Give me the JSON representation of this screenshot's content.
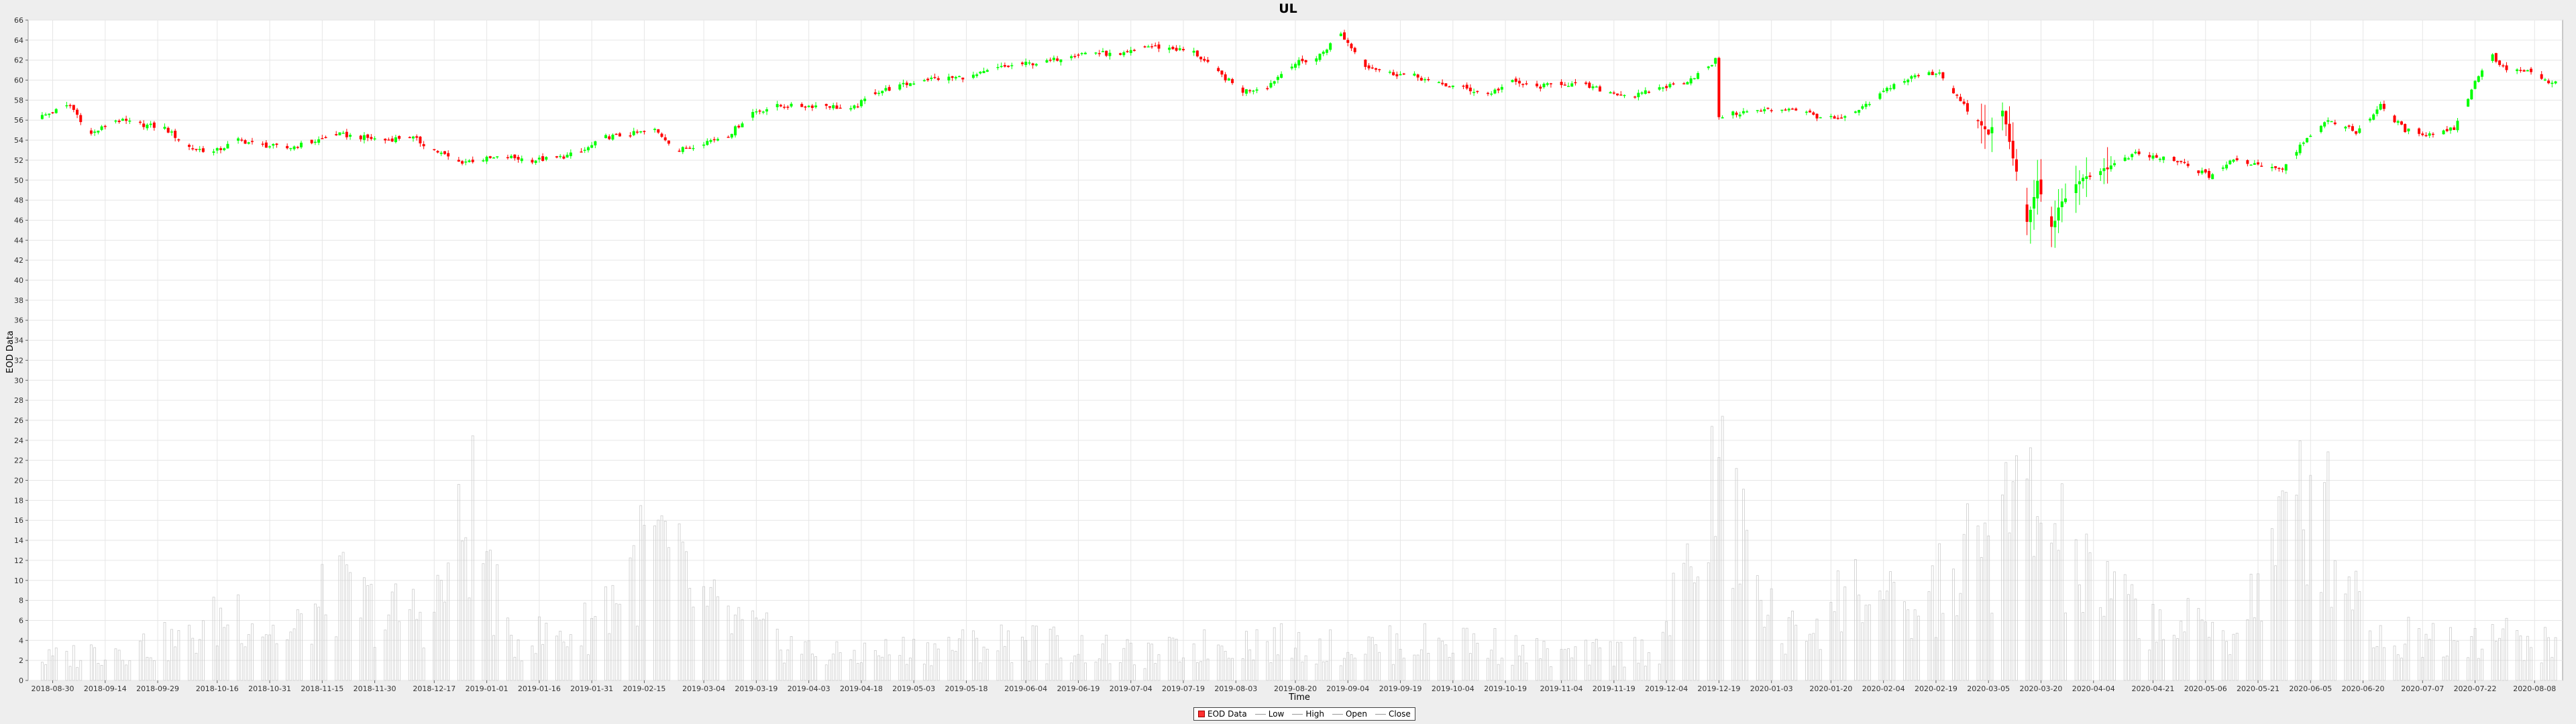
{
  "chart_data": {
    "type": "candlestick",
    "title": "UL",
    "xlabel": "Time",
    "ylabel": "EOD Data",
    "ylim": [
      0,
      66
    ],
    "y_ticks": [
      0,
      2,
      4,
      6,
      8,
      10,
      12,
      14,
      16,
      18,
      20,
      22,
      24,
      26,
      28,
      30,
      32,
      34,
      36,
      38,
      40,
      42,
      44,
      46,
      48,
      50,
      52,
      54,
      56,
      58,
      60,
      62,
      64,
      66
    ],
    "x_range": [
      "2018-08-23",
      "2020-08-16"
    ],
    "x_ticks": [
      "2018-08-30",
      "2018-09-14",
      "2018-09-29",
      "2018-10-16",
      "2018-10-31",
      "2018-11-15",
      "2018-11-30",
      "2018-12-17",
      "2019-01-01",
      "2019-01-16",
      "2019-01-31",
      "2019-02-15",
      "2019-03-04",
      "2019-03-19",
      "2019-04-03",
      "2019-04-18",
      "2019-05-03",
      "2019-05-18",
      "2019-06-04",
      "2019-06-19",
      "2019-07-04",
      "2019-07-19",
      "2019-08-03",
      "2019-08-20",
      "2019-09-04",
      "2019-09-19",
      "2019-10-04",
      "2019-10-19",
      "2019-11-04",
      "2019-11-19",
      "2019-12-04",
      "2019-12-19",
      "2020-01-03",
      "2020-01-20",
      "2020-02-04",
      "2020-02-19",
      "2020-03-05",
      "2020-03-20",
      "2020-04-04",
      "2020-04-21",
      "2020-05-06",
      "2020-05-21",
      "2020-06-05",
      "2020-06-20",
      "2020-07-07",
      "2020-07-22",
      "2020-08-08"
    ],
    "close_path": [
      [
        "2018-08-27",
        56.4
      ],
      [
        "2018-09-04",
        57.5
      ],
      [
        "2018-09-10",
        54.6
      ],
      [
        "2018-09-17",
        56.0
      ],
      [
        "2018-09-24",
        55.6
      ],
      [
        "2018-10-01",
        55.2
      ],
      [
        "2018-10-08",
        53.3
      ],
      [
        "2018-10-15",
        52.8
      ],
      [
        "2018-10-22",
        54.0
      ],
      [
        "2018-10-29",
        53.5
      ],
      [
        "2018-11-05",
        53.2
      ],
      [
        "2018-11-12",
        53.8
      ],
      [
        "2018-11-19",
        54.6
      ],
      [
        "2018-11-26",
        54.3
      ],
      [
        "2018-12-03",
        54.0
      ],
      [
        "2018-12-10",
        54.4
      ],
      [
        "2018-12-17",
        53.0
      ],
      [
        "2018-12-24",
        51.8
      ],
      [
        "2018-12-31",
        52.1
      ],
      [
        "2019-01-07",
        52.3
      ],
      [
        "2019-01-14",
        52.0
      ],
      [
        "2019-01-21",
        52.2
      ],
      [
        "2019-01-28",
        52.8
      ],
      [
        "2019-02-04",
        54.3
      ],
      [
        "2019-02-11",
        54.6
      ],
      [
        "2019-02-18",
        55.0
      ],
      [
        "2019-02-25",
        53.0
      ],
      [
        "2019-03-04",
        53.8
      ],
      [
        "2019-03-11",
        54.5
      ],
      [
        "2019-03-18",
        56.8
      ],
      [
        "2019-03-25",
        57.4
      ],
      [
        "2019-04-01",
        57.4
      ],
      [
        "2019-04-08",
        57.5
      ],
      [
        "2019-04-15",
        57.0
      ],
      [
        "2019-04-22",
        58.8
      ],
      [
        "2019-04-29",
        59.4
      ],
      [
        "2019-05-06",
        60.1
      ],
      [
        "2019-05-13",
        60.2
      ],
      [
        "2019-05-20",
        60.4
      ],
      [
        "2019-05-27",
        61.2
      ],
      [
        "2019-06-03",
        61.6
      ],
      [
        "2019-06-10",
        61.8
      ],
      [
        "2019-06-17",
        62.6
      ],
      [
        "2019-06-24",
        62.8
      ],
      [
        "2019-07-01",
        62.4
      ],
      [
        "2019-07-08",
        63.4
      ],
      [
        "2019-07-15",
        63.2
      ],
      [
        "2019-07-22",
        62.8
      ],
      [
        "2019-07-29",
        60.7
      ],
      [
        "2019-08-05",
        58.9
      ],
      [
        "2019-08-12",
        59.4
      ],
      [
        "2019-08-19",
        61.6
      ],
      [
        "2019-08-26",
        62.2
      ],
      [
        "2019-09-02",
        64.6
      ],
      [
        "2019-09-09",
        61.5
      ],
      [
        "2019-09-16",
        60.7
      ],
      [
        "2019-09-23",
        60.4
      ],
      [
        "2019-09-30",
        59.6
      ],
      [
        "2019-10-07",
        59.2
      ],
      [
        "2019-10-14",
        58.6
      ],
      [
        "2019-10-21",
        59.8
      ],
      [
        "2019-10-28",
        59.3
      ],
      [
        "2019-11-04",
        59.7
      ],
      [
        "2019-11-11",
        59.4
      ],
      [
        "2019-11-18",
        58.8
      ],
      [
        "2019-11-25",
        58.4
      ],
      [
        "2019-12-02",
        59.2
      ],
      [
        "2019-12-09",
        59.8
      ],
      [
        "2019-12-16",
        61.2
      ],
      [
        "2019-12-18",
        62.0
      ],
      [
        "2019-12-19",
        56.4
      ],
      [
        "2019-12-26",
        56.8
      ],
      [
        "2020-01-02",
        57.0
      ],
      [
        "2020-01-09",
        57.2
      ],
      [
        "2020-01-16",
        56.4
      ],
      [
        "2020-01-23",
        56.0
      ],
      [
        "2020-01-30",
        57.4
      ],
      [
        "2020-02-06",
        59.4
      ],
      [
        "2020-02-13",
        60.4
      ],
      [
        "2020-02-20",
        60.8
      ],
      [
        "2020-02-27",
        57.4
      ],
      [
        "2020-03-05",
        54.6
      ],
      [
        "2020-03-09",
        57.0
      ],
      [
        "2020-03-12",
        52.4
      ],
      [
        "2020-03-16",
        45.6
      ],
      [
        "2020-03-19",
        49.8
      ],
      [
        "2020-03-23",
        45.2
      ],
      [
        "2020-03-26",
        48.0
      ],
      [
        "2020-04-02",
        50.4
      ],
      [
        "2020-04-09",
        51.4
      ],
      [
        "2020-04-16",
        52.6
      ],
      [
        "2020-04-23",
        52.2
      ],
      [
        "2020-04-30",
        51.6
      ],
      [
        "2020-05-07",
        50.4
      ],
      [
        "2020-05-14",
        52.0
      ],
      [
        "2020-05-21",
        51.6
      ],
      [
        "2020-05-28",
        51.2
      ],
      [
        "2020-06-04",
        54.4
      ],
      [
        "2020-06-11",
        56.0
      ],
      [
        "2020-06-18",
        54.8
      ],
      [
        "2020-06-25",
        57.4
      ],
      [
        "2020-07-02",
        55.0
      ],
      [
        "2020-07-09",
        54.6
      ],
      [
        "2020-07-16",
        55.2
      ],
      [
        "2020-07-23",
        60.6
      ],
      [
        "2020-07-27",
        62.4
      ],
      [
        "2020-07-30",
        61.2
      ],
      [
        "2020-08-06",
        60.8
      ],
      [
        "2020-08-13",
        59.6
      ],
      [
        "2020-08-15",
        60.2
      ]
    ],
    "volume_path": [
      [
        "2018-08-27",
        2.5
      ],
      [
        "2018-09-17",
        4
      ],
      [
        "2018-10-08",
        5
      ],
      [
        "2018-10-22",
        9
      ],
      [
        "2018-11-05",
        5
      ],
      [
        "2018-11-19",
        11
      ],
      [
        "2018-12-03",
        8
      ],
      [
        "2018-12-17",
        9
      ],
      [
        "2018-12-28",
        21
      ],
      [
        "2019-01-07",
        5
      ],
      [
        "2019-01-28",
        6
      ],
      [
        "2019-02-18",
        17
      ],
      [
        "2019-03-04",
        9
      ],
      [
        "2019-03-18",
        6
      ],
      [
        "2019-04-08",
        3
      ],
      [
        "2019-05-06",
        4
      ],
      [
        "2019-06-03",
        5
      ],
      [
        "2019-07-08",
        3
      ],
      [
        "2019-08-05",
        5
      ],
      [
        "2019-09-02",
        4
      ],
      [
        "2019-10-07",
        5
      ],
      [
        "2019-11-04",
        3
      ],
      [
        "2019-12-02",
        4
      ],
      [
        "2019-12-19",
        24
      ],
      [
        "2020-01-06",
        5
      ],
      [
        "2020-01-30",
        12
      ],
      [
        "2020-02-10",
        7
      ],
      [
        "2020-03-02",
        16
      ],
      [
        "2020-03-16",
        22
      ],
      [
        "2020-04-02",
        12
      ],
      [
        "2020-04-23",
        7
      ],
      [
        "2020-05-14",
        6
      ],
      [
        "2020-06-05",
        24
      ],
      [
        "2020-06-25",
        5
      ],
      [
        "2020-07-23",
        6
      ],
      [
        "2020-08-15",
        4
      ]
    ]
  },
  "legend": {
    "items": [
      "EOD Data",
      "Low",
      "High",
      "Open",
      "Close"
    ]
  },
  "colors": {
    "up": "#00ff00",
    "down": "#ff0000",
    "gridline": "#e6e6e6",
    "volume_bar": "#cccccc",
    "plot_bg": "#ffffff"
  }
}
